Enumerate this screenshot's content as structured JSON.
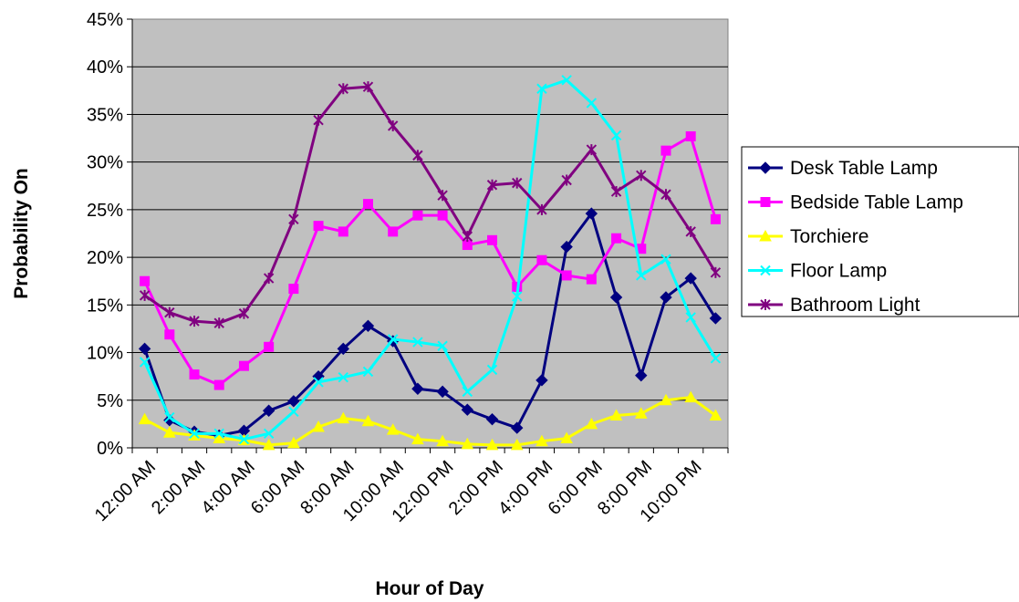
{
  "chart_data": {
    "type": "line",
    "title": "",
    "xlabel": "Hour of Day",
    "ylabel": "Probability On",
    "ylim": [
      0,
      45
    ],
    "y_ticks": [
      "0%",
      "5%",
      "10%",
      "15%",
      "20%",
      "25%",
      "30%",
      "35%",
      "40%",
      "45%"
    ],
    "x_tick_labels": [
      "12:00 AM",
      "2:00 AM",
      "4:00 AM",
      "6:00 AM",
      "8:00 AM",
      "10:00 AM",
      "12:00 PM",
      "2:00 PM",
      "4:00 PM",
      "6:00 PM",
      "8:00 PM",
      "10:00 PM"
    ],
    "grid": "horizontal",
    "plot_background": "#c0c0c0",
    "legend_position": "right",
    "series": [
      {
        "name": "Desk Table Lamp",
        "color": "#000080",
        "marker": "diamond",
        "values": [
          10.4,
          2.9,
          1.7,
          1.3,
          1.8,
          3.9,
          4.9,
          7.5,
          10.4,
          12.8,
          11.2,
          6.2,
          5.9,
          4.0,
          3.0,
          2.1,
          7.1,
          21.1,
          24.6,
          15.8,
          7.6,
          15.8,
          17.8,
          13.6
        ]
      },
      {
        "name": "Bedside Table Lamp",
        "color": "#ff00ff",
        "marker": "square",
        "values": [
          17.5,
          11.9,
          7.7,
          6.6,
          8.6,
          10.6,
          16.7,
          23.3,
          22.7,
          25.6,
          22.7,
          24.4,
          24.4,
          21.3,
          21.8,
          16.9,
          19.7,
          18.1,
          17.7,
          22.0,
          20.9,
          31.2,
          32.7,
          24.0
        ]
      },
      {
        "name": "Torchiere",
        "color": "#ffff00",
        "marker": "triangle",
        "values": [
          3.0,
          1.6,
          1.3,
          1.0,
          0.8,
          0.3,
          0.5,
          2.2,
          3.1,
          2.8,
          1.9,
          0.9,
          0.7,
          0.4,
          0.3,
          0.3,
          0.7,
          1.0,
          2.5,
          3.4,
          3.6,
          5.0,
          5.3,
          3.4
        ]
      },
      {
        "name": "Floor Lamp",
        "color": "#00ffff",
        "marker": "x",
        "values": [
          9.0,
          3.2,
          1.5,
          1.5,
          0.9,
          1.5,
          3.8,
          6.9,
          7.4,
          8.0,
          11.4,
          11.1,
          10.7,
          5.9,
          8.2,
          15.9,
          37.7,
          38.6,
          36.2,
          32.8,
          18.1,
          19.8,
          13.7,
          9.4
        ]
      },
      {
        "name": "Bathroom Light",
        "color": "#800080",
        "marker": "asterisk",
        "values": [
          16.0,
          14.2,
          13.3,
          13.1,
          14.1,
          17.8,
          24.0,
          34.4,
          37.7,
          37.9,
          33.8,
          30.7,
          26.5,
          22.2,
          27.6,
          27.8,
          25.0,
          28.1,
          31.3,
          26.9,
          28.6,
          26.6,
          22.7,
          18.4
        ]
      }
    ]
  }
}
